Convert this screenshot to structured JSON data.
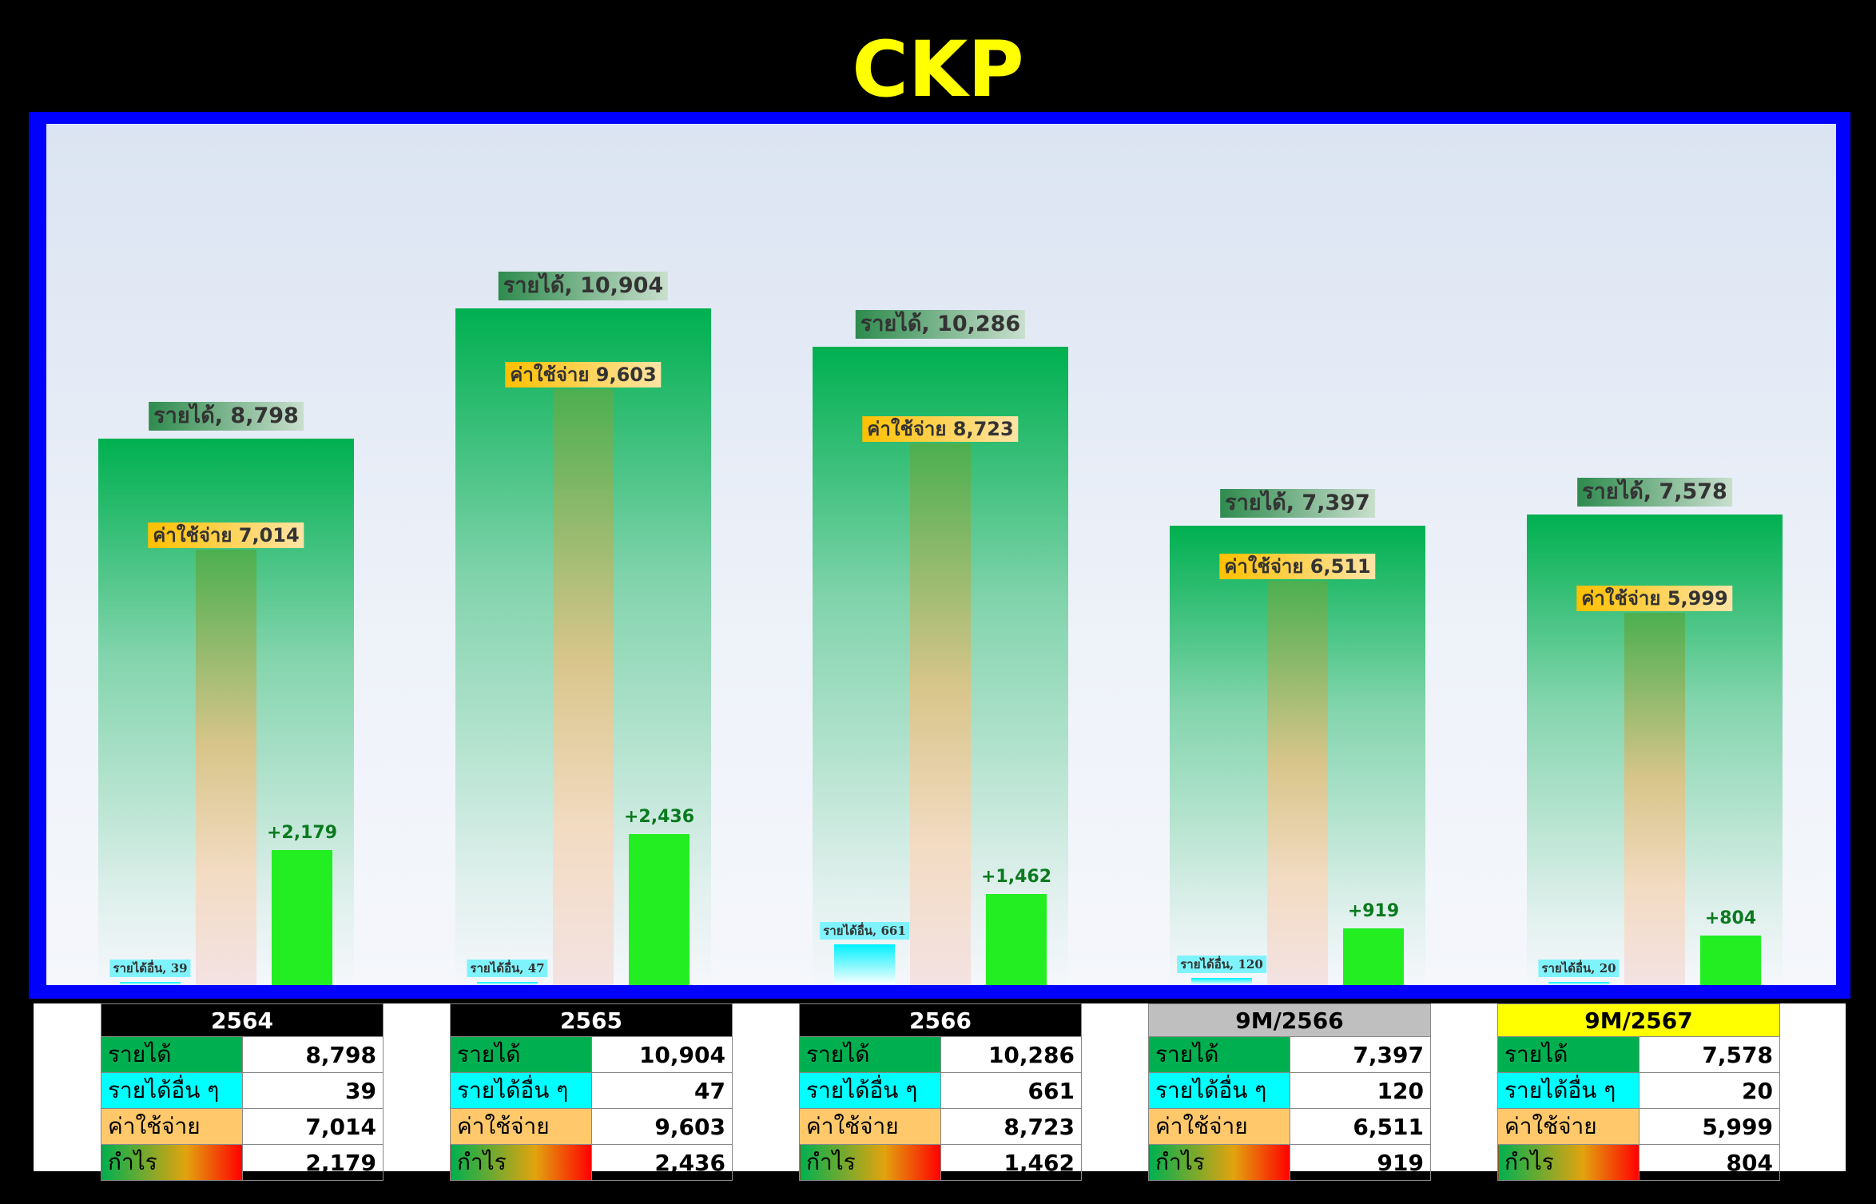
{
  "title": "CKP",
  "chart_data": {
    "type": "bar",
    "categories": [
      "2564",
      "2565",
      "2566",
      "9M/2566",
      "9M/2567"
    ],
    "series": [
      {
        "name": "รายได้",
        "values": [
          8798,
          10904,
          10286,
          7397,
          7578
        ],
        "labels": [
          "รายได้, 8,798",
          "รายได้, 10,904",
          "รายได้, 10,286",
          "รายได้, 7,397",
          "รายได้, 7,578"
        ],
        "color": "#00b050"
      },
      {
        "name": "รายได้อื่น",
        "values": [
          39,
          47,
          661,
          120,
          20
        ],
        "labels": [
          "รายได้อื่น, 39",
          "รายได้อื่น, 47",
          "รายได้อื่น, 661",
          "รายได้อื่น, 120",
          "รายได้อื่น, 20"
        ],
        "color": "#00f0ff"
      },
      {
        "name": "ค่าใช้จ่าย",
        "values": [
          7014,
          9603,
          8723,
          6511,
          5999
        ],
        "labels": [
          "ค่าใช้จ่าย 7,014",
          "ค่าใช้จ่าย 9,603",
          "ค่าใช้จ่าย 8,723",
          "ค่าใช้จ่าย 6,511",
          "ค่าใช้จ่าย 5,999"
        ],
        "color": "#ffc000"
      },
      {
        "name": "กำไร",
        "values": [
          2179,
          2436,
          1462,
          919,
          804
        ],
        "labels": [
          "+2,179",
          "+2,436",
          "+1,462",
          "+919",
          "+804"
        ],
        "color": "#22ee22"
      }
    ],
    "ylim": [
      0,
      13000
    ],
    "grid": false,
    "legend": "none"
  },
  "tables": [
    {
      "header": "2564",
      "header_bg": "#000000",
      "header_color": "#ffffff",
      "rows": [
        {
          "label": "รายได้",
          "value": "8,798"
        },
        {
          "label": "รายได้อื่น ๆ",
          "value": "39"
        },
        {
          "label": "ค่าใช้จ่าย",
          "value": "7,014"
        },
        {
          "label": "กำไร",
          "value": "2,179"
        }
      ]
    },
    {
      "header": "2565",
      "header_bg": "#000000",
      "header_color": "#ffffff",
      "rows": [
        {
          "label": "รายได้",
          "value": "10,904"
        },
        {
          "label": "รายได้อื่น ๆ",
          "value": "47"
        },
        {
          "label": "ค่าใช้จ่าย",
          "value": "9,603"
        },
        {
          "label": "กำไร",
          "value": "2,436"
        }
      ]
    },
    {
      "header": "2566",
      "header_bg": "#000000",
      "header_color": "#ffffff",
      "rows": [
        {
          "label": "รายได้",
          "value": "10,286"
        },
        {
          "label": "รายได้อื่น ๆ",
          "value": "661"
        },
        {
          "label": "ค่าใช้จ่าย",
          "value": "8,723"
        },
        {
          "label": "กำไร",
          "value": "1,462"
        }
      ]
    },
    {
      "header": "9M/2566",
      "header_bg": "#bfbfbf",
      "header_color": "#000000",
      "rows": [
        {
          "label": "รายได้",
          "value": "7,397"
        },
        {
          "label": "รายได้อื่น ๆ",
          "value": "120"
        },
        {
          "label": "ค่าใช้จ่าย",
          "value": "6,511"
        },
        {
          "label": "กำไร",
          "value": "919"
        }
      ]
    },
    {
      "header": "9M/2567",
      "header_bg": "#ffff00",
      "header_color": "#000000",
      "rows": [
        {
          "label": "รายได้",
          "value": "7,578"
        },
        {
          "label": "รายได้อื่น ๆ",
          "value": "20"
        },
        {
          "label": "ค่าใช้จ่าย",
          "value": "5,999"
        },
        {
          "label": "กำไร",
          "value": "804"
        }
      ]
    }
  ]
}
